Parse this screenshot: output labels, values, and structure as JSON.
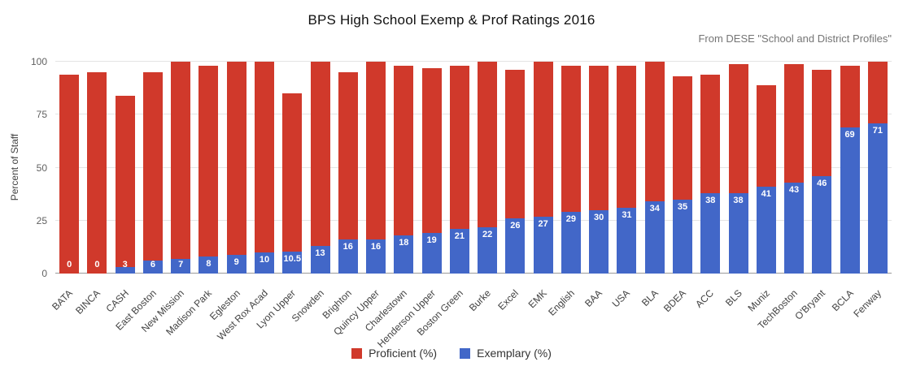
{
  "chart_data": {
    "type": "bar",
    "stacked": true,
    "title": "BPS High School Exemp & Prof Ratings 2016",
    "subtitle": "From DESE \"School and District Profiles\"",
    "ylabel": "Percent of Staff",
    "ylim": [
      0,
      100
    ],
    "yticks": [
      0,
      25,
      50,
      75,
      100
    ],
    "grid": true,
    "legend_position": "bottom",
    "categories": [
      "BATA",
      "BINCA",
      "CASH",
      "East Boston",
      "New Mission",
      "Madison Park",
      "Egleston",
      "West Rox Acad",
      "Lyon Upper",
      "Snowden",
      "Brighton",
      "Quincy Upper",
      "Charlestown",
      "Henderson Upper",
      "Boston Green",
      "Burke",
      "Excel",
      "EMK",
      "English",
      "BAA",
      "USA",
      "BLA",
      "BDEA",
      "ACC",
      "BLS",
      "Muniz",
      "TechBoston",
      "O'Bryant",
      "BCLA",
      "Fenway"
    ],
    "series": [
      {
        "name": "Proficient (%)",
        "color": "#d0392b",
        "values": [
          94,
          95,
          81,
          89,
          93,
          90,
          91,
          90,
          74.5,
          87,
          79,
          84,
          80,
          78,
          77,
          78,
          70,
          73,
          69,
          68,
          67,
          66,
          58,
          56,
          61,
          48,
          56,
          50,
          29,
          29
        ]
      },
      {
        "name": "Exemplary (%)",
        "color": "#4267c8",
        "values": [
          0,
          0,
          3,
          6,
          7,
          8,
          9,
          10,
          10.5,
          13,
          16,
          16,
          18,
          19,
          21,
          22,
          26,
          27,
          29,
          30,
          31,
          34,
          35,
          38,
          38,
          41,
          43,
          46,
          69,
          71
        ]
      }
    ],
    "bar_labels_from_series": "Exemplary (%)",
    "colors": {
      "proficient": "#d0392b",
      "exemplary": "#4267c8",
      "background": "#ffffff"
    }
  }
}
